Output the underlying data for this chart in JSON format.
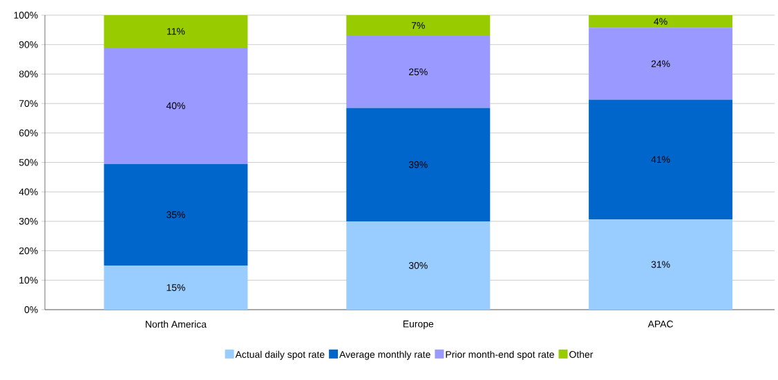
{
  "chart_data": {
    "type": "bar",
    "stacked": true,
    "categories": [
      "North America",
      "Europe",
      "APAC"
    ],
    "series": [
      {
        "name": "Actual daily spot rate",
        "color": "#99ccff",
        "values": [
          15,
          30,
          30.7
        ],
        "value_labels": [
          "15%",
          "30%",
          "31%"
        ]
      },
      {
        "name": "Average monthly rate",
        "color": "#0066cc",
        "values": [
          34.5,
          38.5,
          40.6
        ],
        "value_labels": [
          "35%",
          "39%",
          "41%"
        ]
      },
      {
        "name": "Prior month-end spot rate",
        "color": "#9999ff",
        "values": [
          39.5,
          24.5,
          24.4
        ],
        "value_labels": [
          "40%",
          "25%",
          "24%"
        ]
      },
      {
        "name": "Other",
        "color": "#99cc00",
        "values": [
          11,
          7,
          4.3
        ],
        "value_labels": [
          "11%",
          "7%",
          "4%"
        ]
      }
    ],
    "ylim": [
      0,
      100
    ],
    "yticks": [
      {
        "value": 0,
        "label": "0%"
      },
      {
        "value": 10,
        "label": "10%"
      },
      {
        "value": 20,
        "label": "20%"
      },
      {
        "value": 30,
        "label": "30%"
      },
      {
        "value": 40,
        "label": "40%"
      },
      {
        "value": 50,
        "label": "50%"
      },
      {
        "value": 60,
        "label": "60%"
      },
      {
        "value": 70,
        "label": "70%"
      },
      {
        "value": 80,
        "label": "80%"
      },
      {
        "value": 90,
        "label": "90%"
      },
      {
        "value": 100,
        "label": "100%"
      }
    ],
    "grid": "y",
    "legend": "bottom"
  }
}
